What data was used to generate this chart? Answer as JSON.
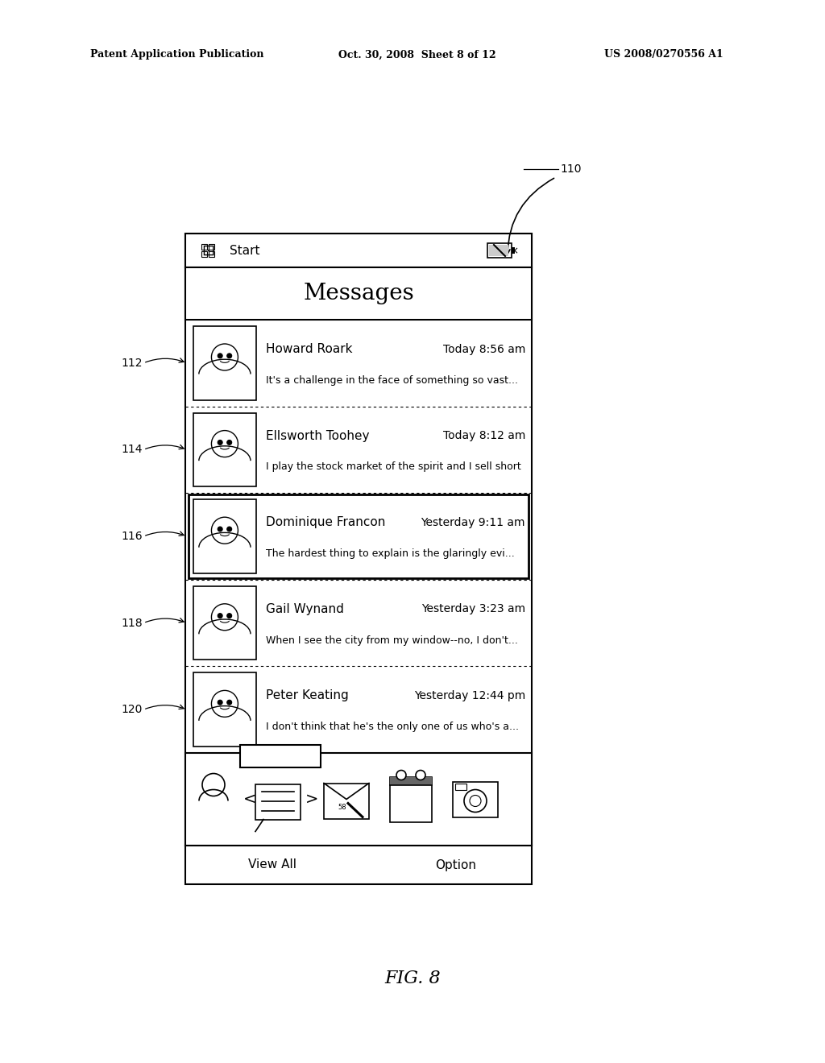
{
  "bg_color": "#ffffff",
  "header_left": "Patent Application Publication",
  "header_mid": "Oct. 30, 2008  Sheet 8 of 12",
  "header_right": "US 2008/0270556 A1",
  "fig_label": "FIG. 8",
  "label_110": "110",
  "contacts": [
    {
      "id": "112",
      "name": "Howard Roark",
      "time": "Today 8:56 am",
      "preview": "It's a challenge in the face of something so vast...",
      "selected": false
    },
    {
      "id": "114",
      "name": "Ellsworth Toohey",
      "time": "Today 8:12 am",
      "preview": "I play the stock market of the spirit and I sell short",
      "selected": false
    },
    {
      "id": "116",
      "name": "Dominique Francon",
      "time": "Yesterday 9:11 am",
      "preview": "The hardest thing to explain is the glaringly evi...",
      "selected": true
    },
    {
      "id": "118",
      "name": "Gail Wynand",
      "time": "Yesterday 3:23 am",
      "preview": "When I see the city from my window--no, I don't...",
      "selected": false
    },
    {
      "id": "120",
      "name": "Peter Keating",
      "time": "Yesterday 12:44 pm",
      "preview": "I don't think that he's the only one of us who's a...",
      "selected": false
    }
  ]
}
